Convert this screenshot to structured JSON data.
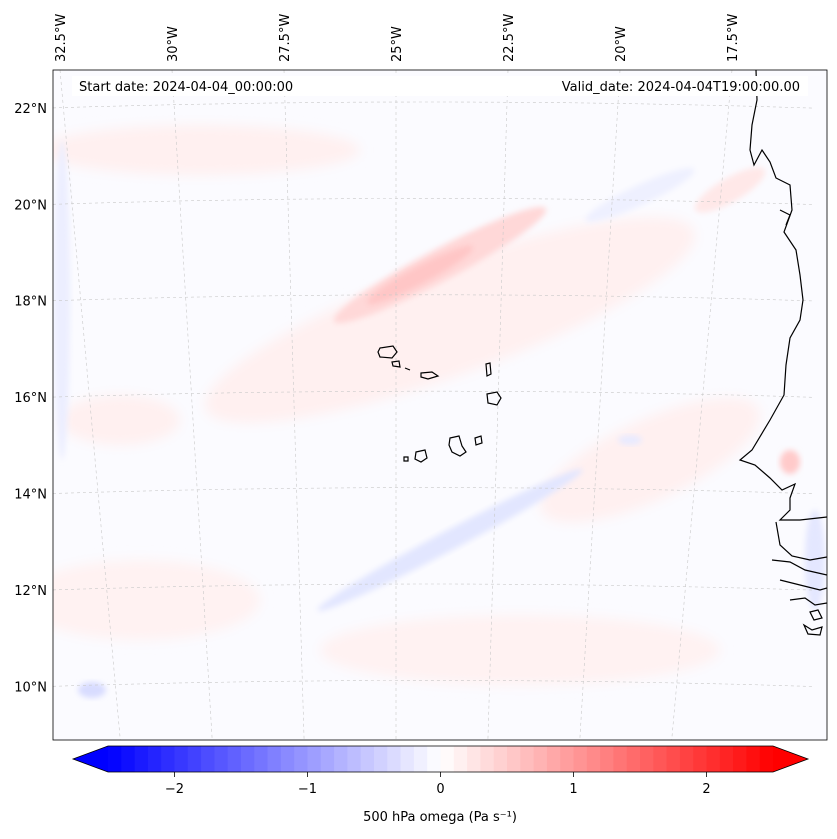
{
  "header": {
    "start_date": "Start date: 2024-04-04_00:00:00",
    "valid_date": "Valid_date: 2024-04-04T19:00:00.00"
  },
  "map": {
    "extent": {
      "lon_min": -33.0,
      "lon_max": -15.0,
      "lat_min": 8.9,
      "lat_max": 22.8
    },
    "lon_ticks": [
      {
        "value": -32.5,
        "label": "32.5°W"
      },
      {
        "value": -30.0,
        "label": "30°W"
      },
      {
        "value": -27.5,
        "label": "27.5°W"
      },
      {
        "value": -25.0,
        "label": "25°W"
      },
      {
        "value": -22.5,
        "label": "22.5°W"
      },
      {
        "value": -20.0,
        "label": "20°W"
      },
      {
        "value": -17.5,
        "label": "17.5°W"
      }
    ],
    "lat_ticks": [
      {
        "value": 22,
        "label": "22°N"
      },
      {
        "value": 20,
        "label": "20°N"
      },
      {
        "value": 18,
        "label": "18°N"
      },
      {
        "value": 16,
        "label": "16°N"
      },
      {
        "value": 14,
        "label": "14°N"
      },
      {
        "value": 12,
        "label": "12°N"
      },
      {
        "value": 10,
        "label": "10°N"
      }
    ],
    "gridlines": true,
    "field": "500 hPa omega"
  },
  "colorbar": {
    "label": "500 hPa omega (Pa s⁻¹)",
    "min": -2.5,
    "max": 2.5,
    "extend": "both",
    "cmap": "bwr",
    "color_low": "#0000ff",
    "color_mid": "#ffffff",
    "color_high": "#ff0000",
    "ticks": [
      {
        "value": -2,
        "label": "−2"
      },
      {
        "value": -1,
        "label": "−1"
      },
      {
        "value": 0,
        "label": "0"
      },
      {
        "value": 1,
        "label": "1"
      },
      {
        "value": 2,
        "label": "2"
      }
    ]
  }
}
